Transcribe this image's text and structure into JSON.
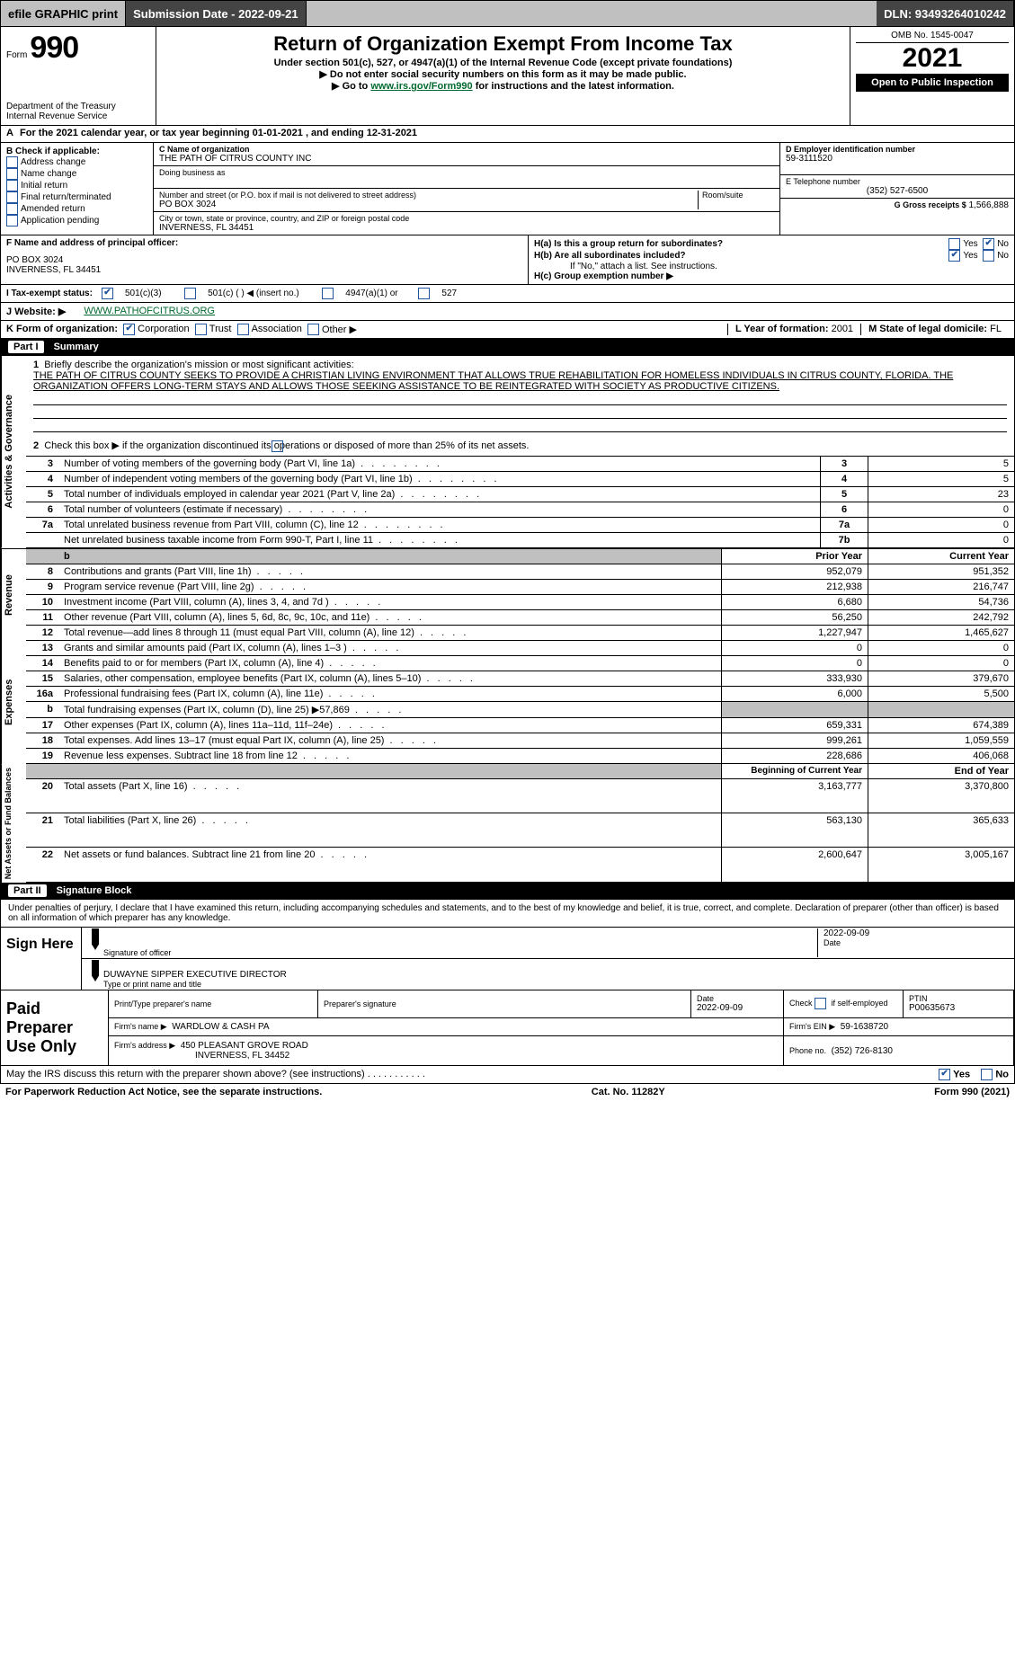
{
  "topbar": {
    "efile_label": "efile GRAPHIC print",
    "submission_date_label": "Submission Date - 2022-09-21",
    "dln_label": "DLN: 93493264010242"
  },
  "head": {
    "form_prefix": "Form",
    "form_number": "990",
    "title": "Return of Organization Exempt From Income Tax",
    "subtitle": "Under section 501(c), 527, or 4947(a)(1) of the Internal Revenue Code (except private foundations)",
    "note1": "▶ Do not enter social security numbers on this form as it may be made public.",
    "note2_pre": "▶ Go to ",
    "note2_link": "www.irs.gov/Form990",
    "note2_post": " for instructions and the latest information.",
    "dept": "Department of the Treasury",
    "irs": "Internal Revenue Service",
    "omb": "OMB No. 1545-0047",
    "year": "2021",
    "open": "Open to Public Inspection"
  },
  "fy": {
    "line_a": "For the 2021 calendar year, or tax year beginning 01-01-2021    , and ending 12-31-2021",
    "line_a_prefix": "A"
  },
  "boxB": {
    "label": "B Check if applicable:",
    "items": [
      "Address change",
      "Name change",
      "Initial return",
      "Final return/terminated",
      "Amended return",
      "Application pending"
    ]
  },
  "boxC": {
    "label": "C Name of organization",
    "org": "THE PATH OF CITRUS COUNTY INC",
    "dba_label": "Doing business as",
    "addr_label": "Number and street (or P.O. box if mail is not delivered to street address)",
    "room_label": "Room/suite",
    "addr": "PO BOX 3024",
    "city_label": "City or town, state or province, country, and ZIP or foreign postal code",
    "city": "INVERNESS, FL  34451"
  },
  "boxD": {
    "label": "D Employer identification number",
    "ein": "59-3111520"
  },
  "boxE": {
    "label": "E Telephone number",
    "phone": "(352) 527-6500"
  },
  "boxG": {
    "label": "G Gross receipts $",
    "val": "1,566,888"
  },
  "boxF": {
    "label": "F Name and address of principal officer:",
    "addr1": "PO BOX 3024",
    "addr2": "INVERNESS, FL  34451"
  },
  "boxH": {
    "a_label": "H(a)  Is this a group return for subordinates?",
    "b_label": "H(b)  Are all subordinates included?",
    "b_note": "If \"No,\" attach a list. See instructions.",
    "c_label": "H(c)  Group exemption number ▶",
    "yes": "Yes",
    "no": "No"
  },
  "rowI": {
    "label": "I   Tax-exempt status:",
    "opt1": "501(c)(3)",
    "opt2": "501(c) (  ) ◀ (insert no.)",
    "opt3": "4947(a)(1) or",
    "opt4": "527"
  },
  "rowJ": {
    "label": "J   Website: ▶",
    "url": "WWW.PATHOFCITRUS.ORG"
  },
  "rowK": {
    "label": "K Form of organization:",
    "opts": [
      "Corporation",
      "Trust",
      "Association",
      "Other ▶"
    ],
    "l_label": "L Year of formation:",
    "l_val": "2001",
    "m_label": "M State of legal domicile:",
    "m_val": "FL"
  },
  "part1": {
    "header": "Part I",
    "title": "Summary",
    "side_ag": "Activities & Governance",
    "side_rev": "Revenue",
    "side_exp": "Expenses",
    "side_net": "Net Assets or Fund Balances",
    "line1_label": "Briefly describe the organization's mission or most significant activities:",
    "mission": "THE PATH OF CITRUS COUNTY SEEKS TO PROVIDE A CHRISTIAN LIVING ENVIRONMENT THAT ALLOWS TRUE REHABILITATION FOR HOMELESS INDIVIDUALS IN CITRUS COUNTY, FLORIDA. THE ORGANIZATION OFFERS LONG-TERM STAYS AND ALLOWS THOSE SEEKING ASSISTANCE TO BE REINTEGRATED WITH SOCIETY AS PRODUCTIVE CITIZENS.",
    "line2": "Check this box ▶        if the organization discontinued its operations or disposed of more than 25% of its net assets.",
    "rows_ag": [
      {
        "n": "3",
        "d": "Number of voting members of the governing body (Part VI, line 1a)",
        "c": "3",
        "v": "5"
      },
      {
        "n": "4",
        "d": "Number of independent voting members of the governing body (Part VI, line 1b)",
        "c": "4",
        "v": "5"
      },
      {
        "n": "5",
        "d": "Total number of individuals employed in calendar year 2021 (Part V, line 2a)",
        "c": "5",
        "v": "23"
      },
      {
        "n": "6",
        "d": "Total number of volunteers (estimate if necessary)",
        "c": "6",
        "v": "0"
      },
      {
        "n": "7a",
        "d": "Total unrelated business revenue from Part VIII, column (C), line 12",
        "c": "7a",
        "v": "0"
      },
      {
        "n": "",
        "d": "Net unrelated business taxable income from Form 990-T, Part I, line 11",
        "c": "7b",
        "v": "0"
      }
    ],
    "prior_label": "Prior Year",
    "current_label": "Current Year",
    "rows_rev": [
      {
        "n": "8",
        "d": "Contributions and grants (Part VIII, line 1h)",
        "p": "952,079",
        "c": "951,352"
      },
      {
        "n": "9",
        "d": "Program service revenue (Part VIII, line 2g)",
        "p": "212,938",
        "c": "216,747"
      },
      {
        "n": "10",
        "d": "Investment income (Part VIII, column (A), lines 3, 4, and 7d )",
        "p": "6,680",
        "c": "54,736"
      },
      {
        "n": "11",
        "d": "Other revenue (Part VIII, column (A), lines 5, 6d, 8c, 9c, 10c, and 11e)",
        "p": "56,250",
        "c": "242,792"
      },
      {
        "n": "12",
        "d": "Total revenue—add lines 8 through 11 (must equal Part VIII, column (A), line 12)",
        "p": "1,227,947",
        "c": "1,465,627"
      }
    ],
    "rows_exp": [
      {
        "n": "13",
        "d": "Grants and similar amounts paid (Part IX, column (A), lines 1–3 )",
        "p": "0",
        "c": "0"
      },
      {
        "n": "14",
        "d": "Benefits paid to or for members (Part IX, column (A), line 4)",
        "p": "0",
        "c": "0"
      },
      {
        "n": "15",
        "d": "Salaries, other compensation, employee benefits (Part IX, column (A), lines 5–10)",
        "p": "333,930",
        "c": "379,670"
      },
      {
        "n": "16a",
        "d": "Professional fundraising fees (Part IX, column (A), line 11e)",
        "p": "6,000",
        "c": "5,500"
      },
      {
        "n": "b",
        "d": "Total fundraising expenses (Part IX, column (D), line 25) ▶57,869",
        "p": "",
        "c": "",
        "grey": true
      },
      {
        "n": "17",
        "d": "Other expenses (Part IX, column (A), lines 11a–11d, 11f–24e)",
        "p": "659,331",
        "c": "674,389"
      },
      {
        "n": "18",
        "d": "Total expenses. Add lines 13–17 (must equal Part IX, column (A), line 25)",
        "p": "999,261",
        "c": "1,059,559"
      },
      {
        "n": "19",
        "d": "Revenue less expenses. Subtract line 18 from line 12",
        "p": "228,686",
        "c": "406,068"
      }
    ],
    "net_begin_label": "Beginning of Current Year",
    "net_end_label": "End of Year",
    "rows_net": [
      {
        "n": "20",
        "d": "Total assets (Part X, line 16)",
        "p": "3,163,777",
        "c": "3,370,800"
      },
      {
        "n": "21",
        "d": "Total liabilities (Part X, line 26)",
        "p": "563,130",
        "c": "365,633"
      },
      {
        "n": "22",
        "d": "Net assets or fund balances. Subtract line 21 from line 20",
        "p": "2,600,647",
        "c": "3,005,167"
      }
    ]
  },
  "part2": {
    "header": "Part II",
    "title": "Signature Block",
    "penalty": "Under penalties of perjury, I declare that I have examined this return, including accompanying schedules and statements, and to the best of my knowledge and belief, it is true, correct, and complete. Declaration of preparer (other than officer) is based on all information of which preparer has any knowledge.",
    "sign_here": "Sign Here",
    "sig_officer_label": "Signature of officer",
    "sig_date": "2022-09-09",
    "date_label": "Date",
    "officer_name": "DUWAYNE SIPPER  EXECUTIVE DIRECTOR",
    "officer_name_label": "Type or print name and title",
    "paid_label": "Paid Preparer Use Only",
    "h_print": "Print/Type preparer's name",
    "h_sig": "Preparer's signature",
    "h_date": "Date",
    "h_date_val": "2022-09-09",
    "h_check": "Check         if self-employed",
    "h_ptin": "PTIN",
    "ptin": "P00635673",
    "firm_name_label": "Firm's name      ▶",
    "firm_name": "WARDLOW & CASH PA",
    "firm_ein_label": "Firm's EIN ▶",
    "firm_ein": "59-1638720",
    "firm_addr_label": "Firm's address ▶",
    "firm_addr1": "450 PLEASANT GROVE ROAD",
    "firm_addr2": "INVERNESS, FL  34452",
    "firm_phone_label": "Phone no.",
    "firm_phone": "(352) 726-8130",
    "discuss": "May the IRS discuss this return with the preparer shown above? (see instructions)",
    "yes": "Yes",
    "no": "No"
  },
  "footer": {
    "pra": "For Paperwork Reduction Act Notice, see the separate instructions.",
    "cat": "Cat. No. 11282Y",
    "form": "Form 990 (2021)"
  },
  "colors": {
    "link_green": "#006a2e",
    "check_blue": "#2256a0",
    "grey": "#c0c0c0"
  }
}
